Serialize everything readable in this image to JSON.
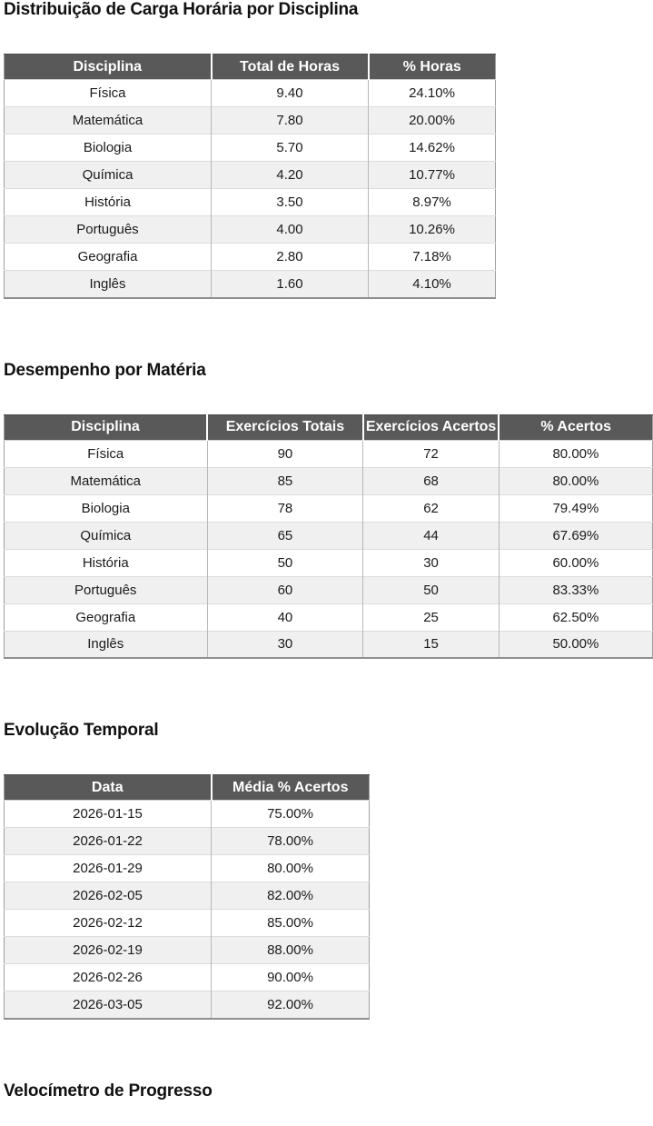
{
  "report": {
    "colors": {
      "header_bg": "#595959",
      "header_text": "#ffffff",
      "row_stripe": "#f0f0f0",
      "body_text": "#1a1a1a"
    },
    "sections": [
      {
        "title": "Distribuição de Carga Horária por Disciplina",
        "table": {
          "columns": [
            "Disciplina",
            "Total de Horas",
            "% Horas"
          ],
          "rows": [
            [
              "Física",
              "9.40",
              "24.10%"
            ],
            [
              "Matemática",
              "7.80",
              "20.00%"
            ],
            [
              "Biologia",
              "5.70",
              "14.62%"
            ],
            [
              "Química",
              "4.20",
              "10.77%"
            ],
            [
              "História",
              "3.50",
              "8.97%"
            ],
            [
              "Português",
              "4.00",
              "10.26%"
            ],
            [
              "Geografia",
              "2.80",
              "7.18%"
            ],
            [
              "Inglês",
              "1.60",
              "4.10%"
            ]
          ]
        }
      },
      {
        "title": "Desempenho por Matéria",
        "table": {
          "columns": [
            "Disciplina",
            "Exercícios Totais",
            "Exercícios Acertos",
            "% Acertos"
          ],
          "rows": [
            [
              "Física",
              "90",
              "72",
              "80.00%"
            ],
            [
              "Matemática",
              "85",
              "68",
              "80.00%"
            ],
            [
              "Biologia",
              "78",
              "62",
              "79.49%"
            ],
            [
              "Química",
              "65",
              "44",
              "67.69%"
            ],
            [
              "História",
              "50",
              "30",
              "60.00%"
            ],
            [
              "Português",
              "60",
              "50",
              "83.33%"
            ],
            [
              "Geografia",
              "40",
              "25",
              "62.50%"
            ],
            [
              "Inglês",
              "30",
              "15",
              "50.00%"
            ]
          ]
        }
      },
      {
        "title": "Evolução Temporal",
        "table": {
          "columns": [
            "Data",
            "Média % Acertos"
          ],
          "rows": [
            [
              "2026-01-15",
              "75.00%"
            ],
            [
              "2026-01-22",
              "78.00%"
            ],
            [
              "2026-01-29",
              "80.00%"
            ],
            [
              "2026-02-05",
              "82.00%"
            ],
            [
              "2026-02-12",
              "85.00%"
            ],
            [
              "2026-02-19",
              "88.00%"
            ],
            [
              "2026-02-26",
              "90.00%"
            ],
            [
              "2026-03-05",
              "92.00%"
            ]
          ]
        }
      },
      {
        "title": "Velocímetro de Progresso"
      }
    ]
  }
}
